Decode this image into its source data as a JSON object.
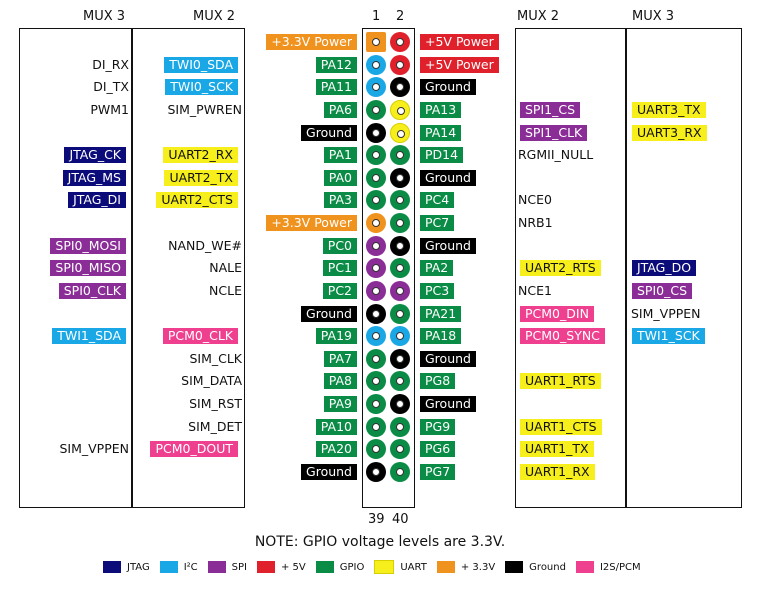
{
  "colors": {
    "JTAG": "#0b0b7a",
    "I2C": "#1aa7e6",
    "SPI": "#8a2d96",
    "V5": "#e0202a",
    "GPIO": "#0b8c46",
    "UART": "#f7ef1b",
    "V33": "#f0921e",
    "GND": "#000000",
    "PCM": "#ef3f8f",
    "NONE": "transparent"
  },
  "headers": {
    "mux3_left": "MUX 3",
    "mux2_left": "MUX 2",
    "pin1": "1",
    "pin2": "2",
    "mux2_right": "MUX 2",
    "mux3_right": "MUX 3"
  },
  "bottom_numbers": {
    "pin39": "39",
    "pin40": "40"
  },
  "note": "NOTE: GPIO voltage levels are 3.3V.",
  "legend": [
    {
      "label": "JTAG",
      "color": "JTAG"
    },
    {
      "label": "I²C",
      "color": "I2C"
    },
    {
      "label": "SPI",
      "color": "SPI"
    },
    {
      "label": "+ 5V",
      "color": "V5"
    },
    {
      "label": "GPIO",
      "color": "GPIO"
    },
    {
      "label": "UART",
      "color": "UART"
    },
    {
      "label": "+ 3.3V",
      "color": "V33"
    },
    {
      "label": "Ground",
      "color": "GND"
    },
    {
      "label": "I2S/PCM",
      "color": "PCM"
    }
  ],
  "rows": [
    {
      "m3l": "",
      "m3lc": "NONE",
      "m2l": "",
      "m2lc": "NONE",
      "odd": "+3.3V Power",
      "oddc": "V33",
      "op": "V33",
      "ep": "V5",
      "even": "+5V Power",
      "evenc": "V5",
      "m2r": "",
      "m2rc": "NONE",
      "m3r": "",
      "m3rc": "NONE"
    },
    {
      "m3l": "DI_RX",
      "m3lc": "NONE",
      "m2l": "TWI0_SDA",
      "m2lc": "I2C",
      "odd": "PA12",
      "oddc": "GPIO",
      "op": "I2C",
      "ep": "V5",
      "even": "+5V Power",
      "evenc": "V5",
      "m2r": "",
      "m2rc": "NONE",
      "m3r": "",
      "m3rc": "NONE"
    },
    {
      "m3l": "DI_TX",
      "m3lc": "NONE",
      "m2l": "TWI0_SCK",
      "m2lc": "I2C",
      "odd": "PA11",
      "oddc": "GPIO",
      "op": "I2C",
      "ep": "GND",
      "even": "Ground",
      "evenc": "GND",
      "m2r": "",
      "m2rc": "NONE",
      "m3r": "",
      "m3rc": "NONE"
    },
    {
      "m3l": "PWM1",
      "m3lc": "NONE",
      "m2l": "SIM_PWREN",
      "m2lc": "NONE",
      "odd": "PA6",
      "oddc": "GPIO",
      "op": "GPIO",
      "ep": "UART",
      "even": "PA13",
      "evenc": "GPIO",
      "m2r": "SPI1_CS",
      "m2rc": "SPI",
      "m3r": "UART3_TX",
      "m3rc": "UART"
    },
    {
      "m3l": "",
      "m3lc": "NONE",
      "m2l": "",
      "m2lc": "NONE",
      "odd": "Ground",
      "oddc": "GND",
      "op": "GND",
      "ep": "UART",
      "even": "PA14",
      "evenc": "GPIO",
      "m2r": "SPI1_CLK",
      "m2rc": "SPI",
      "m3r": "UART3_RX",
      "m3rc": "UART"
    },
    {
      "m3l": "JTAG_CK",
      "m3lc": "JTAG",
      "m2l": "UART2_RX",
      "m2lc": "UART",
      "odd": "PA1",
      "oddc": "GPIO",
      "op": "GPIO",
      "ep": "GPIO",
      "even": "PD14",
      "evenc": "GPIO",
      "m2r": "RGMII_NULL",
      "m2rc": "NONE",
      "m3r": "",
      "m3rc": "NONE"
    },
    {
      "m3l": "JTAG_MS",
      "m3lc": "JTAG",
      "m2l": "UART2_TX",
      "m2lc": "UART",
      "odd": "PA0",
      "oddc": "GPIO",
      "op": "GPIO",
      "ep": "GND",
      "even": "Ground",
      "evenc": "GND",
      "m2r": "",
      "m2rc": "NONE",
      "m3r": "",
      "m3rc": "NONE"
    },
    {
      "m3l": "JTAG_DI",
      "m3lc": "JTAG",
      "m2l": "UART2_CTS",
      "m2lc": "UART",
      "odd": "PA3",
      "oddc": "GPIO",
      "op": "GPIO",
      "ep": "GPIO",
      "even": "PC4",
      "evenc": "GPIO",
      "m2r": "NCE0",
      "m2rc": "NONE",
      "m3r": "",
      "m3rc": "NONE"
    },
    {
      "m3l": "",
      "m3lc": "NONE",
      "m2l": "",
      "m2lc": "NONE",
      "odd": "+3.3V Power",
      "oddc": "V33",
      "op": "V33",
      "ep": "GPIO",
      "even": "PC7",
      "evenc": "GPIO",
      "m2r": "NRB1",
      "m2rc": "NONE",
      "m3r": "",
      "m3rc": "NONE"
    },
    {
      "m3l": "SPI0_MOSI",
      "m3lc": "SPI",
      "m2l": "NAND_WE#",
      "m2lc": "NONE",
      "odd": "PC0",
      "oddc": "GPIO",
      "op": "SPI",
      "ep": "GND",
      "even": "Ground",
      "evenc": "GND",
      "m2r": "",
      "m2rc": "NONE",
      "m3r": "",
      "m3rc": "NONE"
    },
    {
      "m3l": "SPI0_MISO",
      "m3lc": "SPI",
      "m2l": "NALE",
      "m2lc": "NONE",
      "odd": "PC1",
      "oddc": "GPIO",
      "op": "SPI",
      "ep": "GPIO",
      "even": "PA2",
      "evenc": "GPIO",
      "m2r": "UART2_RTS",
      "m2rc": "UART",
      "m3r": "JTAG_DO",
      "m3rc": "JTAG"
    },
    {
      "m3l": "SPI0_CLK",
      "m3lc": "SPI",
      "m2l": "NCLE",
      "m2lc": "NONE",
      "odd": "PC2",
      "oddc": "GPIO",
      "op": "SPI",
      "ep": "SPI",
      "even": "PC3",
      "evenc": "GPIO",
      "m2r": "NCE1",
      "m2rc": "NONE",
      "m3r": "SPI0_CS",
      "m3rc": "SPI"
    },
    {
      "m3l": "",
      "m3lc": "NONE",
      "m2l": "",
      "m2lc": "NONE",
      "odd": "Ground",
      "oddc": "GND",
      "op": "GND",
      "ep": "GPIO",
      "even": "PA21",
      "evenc": "GPIO",
      "m2r": "PCM0_DIN",
      "m2rc": "PCM",
      "m3r": "SIM_VPPEN",
      "m3rc": "NONE"
    },
    {
      "m3l": "TWI1_SDA",
      "m3lc": "I2C",
      "m2l": "PCM0_CLK",
      "m2lc": "PCM",
      "odd": "PA19",
      "oddc": "GPIO",
      "op": "I2C",
      "ep": "I2C",
      "even": "PA18",
      "evenc": "GPIO",
      "m2r": "PCM0_SYNC",
      "m2rc": "PCM",
      "m3r": "TWI1_SCK",
      "m3rc": "I2C"
    },
    {
      "m3l": "",
      "m3lc": "NONE",
      "m2l": "SIM_CLK",
      "m2lc": "NONE",
      "odd": "PA7",
      "oddc": "GPIO",
      "op": "GPIO",
      "ep": "GND",
      "even": "Ground",
      "evenc": "GND",
      "m2r": "",
      "m2rc": "NONE",
      "m3r": "",
      "m3rc": "NONE"
    },
    {
      "m3l": "",
      "m3lc": "NONE",
      "m2l": "SIM_DATA",
      "m2lc": "NONE",
      "odd": "PA8",
      "oddc": "GPIO",
      "op": "GPIO",
      "ep": "GPIO",
      "even": "PG8",
      "evenc": "GPIO",
      "m2r": "UART1_RTS",
      "m2rc": "UART",
      "m3r": "",
      "m3rc": "NONE"
    },
    {
      "m3l": "",
      "m3lc": "NONE",
      "m2l": "SIM_RST",
      "m2lc": "NONE",
      "odd": "PA9",
      "oddc": "GPIO",
      "op": "GPIO",
      "ep": "GND",
      "even": "Ground",
      "evenc": "GND",
      "m2r": "",
      "m2rc": "NONE",
      "m3r": "",
      "m3rc": "NONE"
    },
    {
      "m3l": "",
      "m3lc": "NONE",
      "m2l": "SIM_DET",
      "m2lc": "NONE",
      "odd": "PA10",
      "oddc": "GPIO",
      "op": "GPIO",
      "ep": "GPIO",
      "even": "PG9",
      "evenc": "GPIO",
      "m2r": "UART1_CTS",
      "m2rc": "UART",
      "m3r": "",
      "m3rc": "NONE"
    },
    {
      "m3l": "SIM_VPPEN",
      "m3lc": "NONE",
      "m2l": "PCM0_DOUT",
      "m2lc": "PCM",
      "odd": "PA20",
      "oddc": "GPIO",
      "op": "GPIO",
      "ep": "GPIO",
      "even": "PG6",
      "evenc": "GPIO",
      "m2r": "UART1_TX",
      "m2rc": "UART",
      "m3r": "",
      "m3rc": "NONE"
    },
    {
      "m3l": "",
      "m3lc": "NONE",
      "m2l": "",
      "m2lc": "NONE",
      "odd": "Ground",
      "oddc": "GND",
      "op": "GND",
      "ep": "GPIO",
      "even": "PG7",
      "evenc": "GPIO",
      "m2r": "UART1_RX",
      "m2rc": "UART",
      "m3r": "",
      "m3rc": "NONE"
    }
  ]
}
